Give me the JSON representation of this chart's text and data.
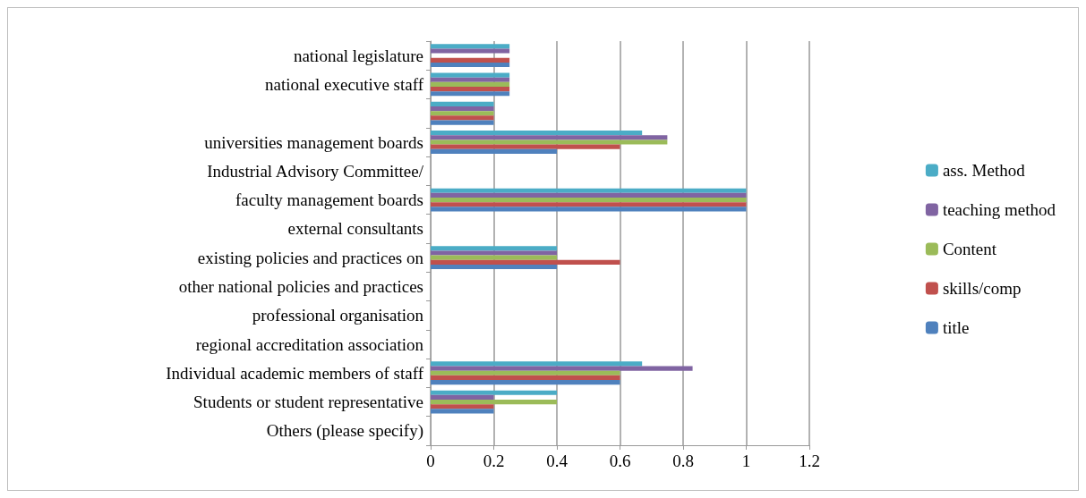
{
  "chart_data": {
    "type": "bar",
    "orientation": "horizontal",
    "categories": [
      "national legislature",
      "national executive staff",
      null,
      "universities management boards",
      "Industrial Advisory Committee/",
      "faculty management boards",
      "external consultants",
      "existing policies and practices on",
      "other national policies and practices",
      "professional organisation",
      "regional accreditation association",
      "Individual academic members of staff",
      "Students or student representative",
      "Others (please specify)"
    ],
    "series": [
      {
        "name": "ass. Method",
        "color": "#4bacc6",
        "values": [
          0.25,
          0.25,
          0.2,
          0.67,
          0,
          1,
          0,
          0.4,
          0,
          0,
          0,
          0.67,
          0.4,
          0
        ]
      },
      {
        "name": "teaching method",
        "color": "#8064a2",
        "values": [
          0.25,
          0.25,
          0.2,
          0.75,
          0,
          1,
          0,
          0.4,
          0,
          0,
          0,
          0.83,
          0.2,
          0
        ]
      },
      {
        "name": "Content",
        "color": "#9bbb59",
        "values": [
          0,
          0.25,
          0.2,
          0.75,
          0,
          1,
          0,
          0.4,
          0,
          0,
          0,
          0.6,
          0.4,
          0
        ]
      },
      {
        "name": "skills/comp",
        "color": "#c0504d",
        "values": [
          0.25,
          0.25,
          0.2,
          0.6,
          0,
          1,
          0,
          0.6,
          0,
          0,
          0,
          0.6,
          0.2,
          0
        ]
      },
      {
        "name": "title",
        "color": "#4f81bd",
        "values": [
          0.25,
          0.25,
          0.2,
          0.4,
          0,
          1,
          0,
          0.4,
          0,
          0,
          0,
          0.6,
          0.2,
          0
        ]
      }
    ],
    "xlim": [
      0,
      1.2
    ],
    "xticks": [
      0,
      0.2,
      0.4,
      0.6,
      0.8,
      1,
      1.2
    ],
    "grid": "x",
    "legend": "right"
  }
}
